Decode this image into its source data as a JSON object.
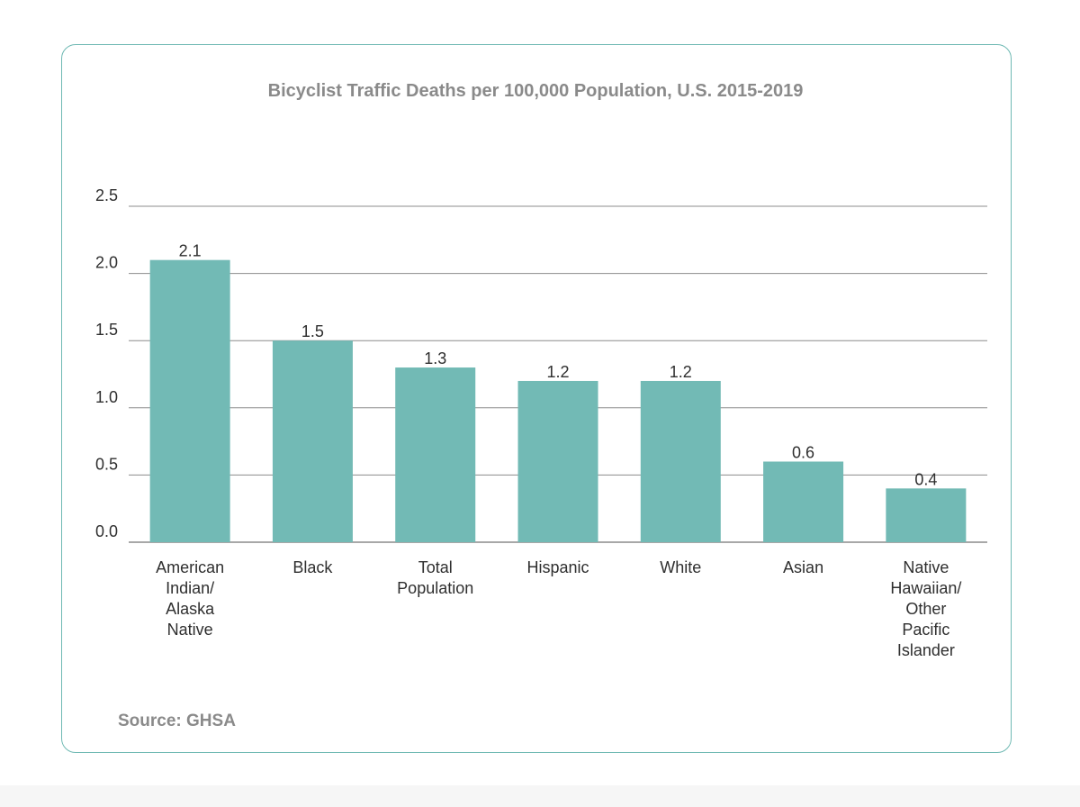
{
  "chart_data": {
    "type": "bar",
    "title": "Bicyclist Traffic Deaths per 100,000 Population, U.S. 2015-2019",
    "categories": [
      [
        "American",
        "Indian/",
        "Alaska",
        "Native"
      ],
      [
        "Black"
      ],
      [
        "Total",
        "Population"
      ],
      [
        "Hispanic"
      ],
      [
        "White"
      ],
      [
        "Asian"
      ],
      [
        "Native",
        "Hawaiian/",
        "Other",
        "Pacific",
        "Islander"
      ]
    ],
    "values": [
      2.1,
      1.5,
      1.3,
      1.2,
      1.2,
      0.6,
      0.4
    ],
    "data_labels": [
      "2.1",
      "1.5",
      "1.3",
      "1.2",
      "1.2",
      "0.6",
      "0.4"
    ],
    "yticks": [
      "0.0",
      "0.5",
      "1.0",
      "1.5",
      "2.0",
      "2.5"
    ],
    "ylim": [
      0,
      2.5
    ],
    "grid": true,
    "bar_color": "#72bab5",
    "grid_color": "#8c8c8c",
    "source": "Source: GHSA"
  },
  "colors": {
    "card_border": "#6fb9b3",
    "title_text": "#8a8a8a",
    "label_text": "#2f2f2f"
  }
}
